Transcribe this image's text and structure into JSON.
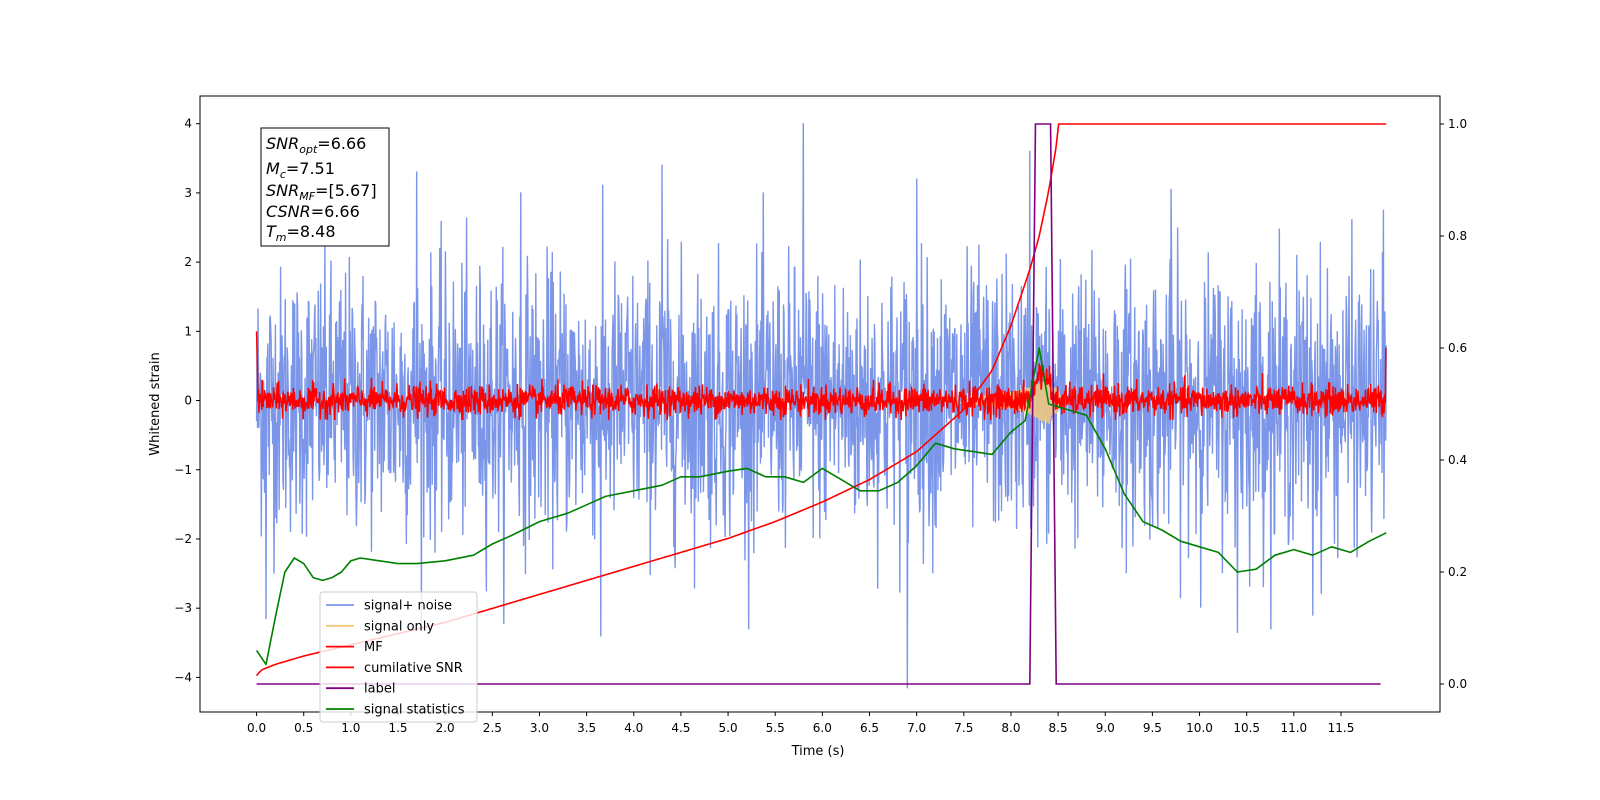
{
  "chart_data": {
    "type": "line",
    "xlabel": "Time (s)",
    "ylabel": "Whitened strain",
    "xlim": [
      -0.6,
      12.55
    ],
    "ylim": [
      -4.5,
      4.4
    ],
    "y2lim": [
      -0.05,
      1.05
    ],
    "grid": false,
    "legend_position": "lower-left",
    "x_ticks": [
      "0.0",
      "0.5",
      "1.0",
      "1.5",
      "2.0",
      "2.5",
      "3.0",
      "3.5",
      "4.0",
      "4.5",
      "5.0",
      "5.5",
      "6.0",
      "6.5",
      "7.0",
      "7.5",
      "8.0",
      "8.5",
      "9.0",
      "9.5",
      "10.0",
      "10.5",
      "11.0",
      "11.5"
    ],
    "y_ticks": [
      "4",
      "3",
      "2",
      "1",
      "0",
      "−1",
      "−2",
      "−3",
      "−4"
    ],
    "y2_ticks": [
      "1.0",
      "0.8",
      "0.6",
      "0.4",
      "0.2",
      "0.0"
    ],
    "info_box": {
      "snr_opt": {
        "base": "SNR",
        "sub": "opt",
        "value": "=6.66"
      },
      "mc": {
        "base": "M",
        "sub": "c",
        "value": "=7.51"
      },
      "snr_mf": {
        "base": "SNR",
        "sub": "MF",
        "value": "=[5.67]"
      },
      "csnr": {
        "base": "CSNR",
        "sub": "",
        "value": "=6.66"
      },
      "tm": {
        "base": "T",
        "sub": "m",
        "value": "=8.48"
      }
    },
    "series": [
      {
        "name": "signal+ noise",
        "color": "#7b96e8",
        "axis": "left",
        "t_range": [
          0.0,
          11.98
        ],
        "mean": 0.0,
        "std": 1.0,
        "noise_extremes": [
          {
            "t": 0.1,
            "v": -3.15
          },
          {
            "t": 1.7,
            "v": 3.3
          },
          {
            "t": 2.8,
            "v": 3.0
          },
          {
            "t": 3.65,
            "v": -3.4
          },
          {
            "t": 4.3,
            "v": 3.4
          },
          {
            "t": 5.8,
            "v": 4.0
          },
          {
            "t": 6.9,
            "v": -4.15
          },
          {
            "t": 7.0,
            "v": 3.2
          },
          {
            "t": 8.2,
            "v": 3.6
          },
          {
            "t": 9.7,
            "v": 3.05
          },
          {
            "t": 10.4,
            "v": -3.35
          },
          {
            "t": 11.2,
            "v": -3.1
          },
          {
            "t": 11.95,
            "v": 2.75
          }
        ]
      },
      {
        "name": "signal only",
        "color": "#f5c97a",
        "axis": "left",
        "t": [
          7.4,
          7.6,
          7.8,
          8.0,
          8.1,
          8.2,
          8.3,
          8.4,
          8.5,
          8.55
        ],
        "amp": [
          0.03,
          0.05,
          0.08,
          0.12,
          0.15,
          0.2,
          0.28,
          0.35,
          0.15,
          0.0
        ]
      },
      {
        "name": "MF",
        "color": "#ff0000",
        "axis": "left",
        "t_range": [
          0.0,
          11.98
        ],
        "mean": 0.0,
        "std": 0.11,
        "bump": {
          "t": [
            8.2,
            8.45
          ],
          "v": 0.5
        }
      },
      {
        "name": "cumilative SNR",
        "color": "#ff0000",
        "axis": "right",
        "t": [
          0.0,
          0.05,
          0.2,
          0.5,
          1.0,
          2.0,
          3.0,
          4.0,
          5.0,
          5.5,
          6.0,
          6.5,
          7.0,
          7.5,
          7.8,
          8.0,
          8.2,
          8.3,
          8.4,
          8.48,
          8.5,
          9.0,
          10.0,
          11.0,
          11.98
        ],
        "values": [
          0.015,
          0.025,
          0.035,
          0.05,
          0.07,
          0.11,
          0.16,
          0.21,
          0.26,
          0.29,
          0.325,
          0.365,
          0.415,
          0.49,
          0.56,
          0.64,
          0.74,
          0.8,
          0.88,
          0.96,
          1.0,
          1.0,
          1.0,
          1.0,
          1.0
        ]
      },
      {
        "name": "label",
        "color": "#800080",
        "axis": "right",
        "t": [
          0.0,
          8.2,
          8.26,
          8.42,
          8.48,
          11.92
        ],
        "values": [
          0.0,
          0.0,
          1.0,
          1.0,
          0.0,
          0.0
        ]
      },
      {
        "name": "signal statistics",
        "color": "#008000",
        "axis": "right",
        "t": [
          0.0,
          0.1,
          0.2,
          0.3,
          0.4,
          0.5,
          0.6,
          0.7,
          0.8,
          0.9,
          1.0,
          1.1,
          1.3,
          1.5,
          1.7,
          2.0,
          2.3,
          2.5,
          2.7,
          3.0,
          3.3,
          3.5,
          3.7,
          4.0,
          4.3,
          4.5,
          4.7,
          5.0,
          5.2,
          5.4,
          5.6,
          5.8,
          6.0,
          6.2,
          6.4,
          6.6,
          6.8,
          7.0,
          7.2,
          7.4,
          7.6,
          7.8,
          8.0,
          8.15,
          8.3,
          8.4,
          8.6,
          8.8,
          9.0,
          9.2,
          9.4,
          9.6,
          9.8,
          10.0,
          10.2,
          10.4,
          10.6,
          10.8,
          11.0,
          11.2,
          11.4,
          11.6,
          11.8,
          11.98
        ],
        "values": [
          0.06,
          0.035,
          0.12,
          0.2,
          0.225,
          0.215,
          0.19,
          0.185,
          0.19,
          0.2,
          0.22,
          0.225,
          0.22,
          0.215,
          0.215,
          0.22,
          0.23,
          0.25,
          0.265,
          0.29,
          0.305,
          0.32,
          0.335,
          0.345,
          0.355,
          0.37,
          0.37,
          0.38,
          0.385,
          0.37,
          0.37,
          0.36,
          0.385,
          0.365,
          0.345,
          0.345,
          0.36,
          0.39,
          0.43,
          0.42,
          0.415,
          0.41,
          0.45,
          0.47,
          0.6,
          0.5,
          0.49,
          0.48,
          0.42,
          0.34,
          0.29,
          0.275,
          0.255,
          0.245,
          0.235,
          0.2,
          0.205,
          0.23,
          0.24,
          0.23,
          0.245,
          0.235,
          0.255,
          0.27
        ]
      }
    ]
  }
}
